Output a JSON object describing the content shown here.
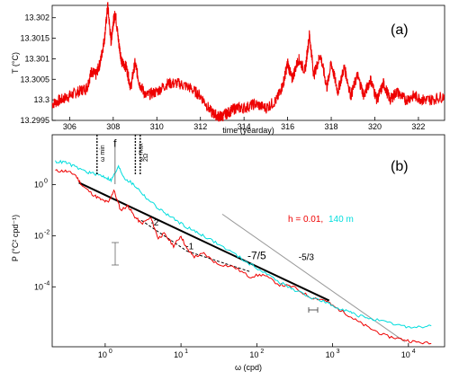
{
  "chart_data": [
    {
      "id": "a",
      "type": "line",
      "panel_label": "(a)",
      "xlabel": "time (yearday)",
      "ylabel": "T (°C)",
      "xlim": [
        305.2,
        323.2
      ],
      "ylim": [
        13.2995,
        13.3023
      ],
      "x_ticks": [
        306,
        308,
        310,
        312,
        314,
        316,
        318,
        320,
        322
      ],
      "y_ticks": [
        {
          "value": 13.2995,
          "label": "13.2995"
        },
        {
          "value": 13.3,
          "label": "13.3"
        },
        {
          "value": 13.3005,
          "label": "13.3005"
        },
        {
          "value": 13.301,
          "label": "13.301"
        },
        {
          "value": 13.3015,
          "label": "13.3015"
        },
        {
          "value": 13.302,
          "label": "13.302"
        }
      ],
      "grid": false,
      "color": "#ee0000",
      "series": [
        {
          "x": [
            305.2,
            305.6,
            306.0,
            306.4,
            306.8,
            307.0,
            307.2,
            307.4,
            307.6,
            307.75,
            307.9,
            308.0,
            308.1,
            308.25,
            308.4,
            308.6,
            308.8,
            309.0,
            309.2,
            309.5,
            310.0,
            310.5,
            311.0,
            311.5,
            312.0,
            312.5,
            312.8,
            313.0,
            313.3,
            313.6,
            314.0,
            314.5,
            315.0,
            315.5,
            315.8,
            316.0,
            316.2,
            316.5,
            316.8,
            317.0,
            317.2,
            317.5,
            317.8,
            318.0,
            318.3,
            318.6,
            318.9,
            319.2,
            319.5,
            319.8,
            320.1,
            320.4,
            320.7,
            321.0,
            321.4,
            321.8,
            322.2,
            322.6,
            323.2
          ],
          "y": [
            13.2999,
            13.3,
            13.3001,
            13.3002,
            13.3003,
            13.3007,
            13.3006,
            13.3009,
            13.3015,
            13.3023,
            13.3014,
            13.3019,
            13.3021,
            13.3014,
            13.3009,
            13.3008,
            13.3003,
            13.3009,
            13.3004,
            13.3001,
            13.3002,
            13.3004,
            13.3004,
            13.3003,
            13.3001,
            13.2997,
            13.2996,
            13.2996,
            13.2997,
            13.2998,
            13.2998,
            13.2999,
            13.2998,
            13.3,
            13.3004,
            13.3009,
            13.3005,
            13.301,
            13.3007,
            13.3016,
            13.3006,
            13.3011,
            13.3003,
            13.3009,
            13.3002,
            13.3008,
            13.3001,
            13.3006,
            13.3001,
            13.3005,
            13.3,
            13.3004,
            13.3,
            13.3002,
            13.3,
            13.3001,
            13.3,
            13.3,
            13.3001
          ]
        }
      ]
    },
    {
      "id": "b",
      "type": "line",
      "panel_label": "(b)",
      "xlabel": "ω (cpd)",
      "ylabel": "P (°C² cpd⁻¹)",
      "xscale": "log",
      "yscale": "log",
      "xlim": [
        0.2,
        30000
      ],
      "ylim": [
        4.5e-07,
        90
      ],
      "x_ticks": [
        {
          "value": 1,
          "label": "10",
          "exp": "0"
        },
        {
          "value": 10,
          "label": "10",
          "exp": "1"
        },
        {
          "value": 100,
          "label": "10",
          "exp": "2"
        },
        {
          "value": 1000,
          "label": "10",
          "exp": "3"
        },
        {
          "value": 10000,
          "label": "10",
          "exp": "4"
        }
      ],
      "y_ticks": [
        {
          "value": 1,
          "label": "10",
          "exp": "0"
        },
        {
          "value": 0.01,
          "label": "10",
          "exp": "-2"
        },
        {
          "value": 0.0001,
          "label": "10",
          "exp": "-4"
        }
      ],
      "legend": {
        "prefix": "h = 0.01, ",
        "entries": [
          {
            "name": "h = 0.01,",
            "color": "#ee0000"
          },
          {
            "name": "140 m",
            "color": "#00dddd"
          }
        ],
        "placement": "right"
      },
      "annotations": [
        {
          "text": "f",
          "x": 1.35,
          "y": 30
        },
        {
          "text": "-2",
          "x": 4.5,
          "y": 0.025
        },
        {
          "text": "-1",
          "x": 13,
          "y": 0.003
        },
        {
          "text": "-7/5",
          "x": 100,
          "y": 0.0012
        },
        {
          "text": "-5/3",
          "x": 450,
          "y": 0.0011
        }
      ],
      "vertical_markers": [
        {
          "x": 0.78,
          "label": "ω",
          "sub": "min"
        },
        {
          "x": 2.5,
          "label": "ω",
          "sub": "max"
        },
        {
          "x": 2.9,
          "label": "2Ω",
          "sub": ""
        }
      ],
      "reference_slopes": [
        {
          "slope": "-7/5",
          "x": [
            0.45,
            900
          ],
          "y": [
            1.2,
            2.9e-05
          ],
          "color": "#000000",
          "style": "solid"
        },
        {
          "slope": "-2",
          "x": [
            3,
            12
          ],
          "y": [
            0.04,
            0.0025
          ],
          "color": "#000000",
          "style": "dashed"
        },
        {
          "slope": "-1",
          "x": [
            12,
            80
          ],
          "y": [
            0.0025,
            0.0004
          ],
          "color": "#000000",
          "style": "dashed"
        },
        {
          "slope": "-5/3",
          "x": [
            35,
            9000
          ],
          "y": [
            0.07,
            7e-07
          ],
          "color": "#999999",
          "style": "solid"
        }
      ],
      "series": [
        {
          "name": "h = 0.01,",
          "color": "#ee0000",
          "x": [
            0.22,
            0.3,
            0.4,
            0.5,
            0.7,
            0.9,
            1.1,
            1.3,
            1.6,
            2.0,
            2.4,
            3.0,
            4.0,
            5.0,
            6.0,
            8.0,
            10,
            12,
            15,
            20,
            30,
            50,
            80,
            120,
            200,
            300,
            500,
            800,
            1000,
            1500,
            2000,
            3000,
            5000,
            8000,
            12000,
            20000
          ],
          "y": [
            3.5,
            3.4,
            2.5,
            0.9,
            0.4,
            0.25,
            0.2,
            0.6,
            0.1,
            0.15,
            0.06,
            0.03,
            0.05,
            0.008,
            0.012,
            0.004,
            0.01,
            0.003,
            0.0015,
            0.002,
            0.0008,
            0.0006,
            0.00025,
            0.0003,
            0.00012,
            0.0001,
            4e-05,
            3e-05,
            1.8e-05,
            9e-06,
            5e-06,
            2.5e-06,
            1.2e-06,
            9e-07,
            7e-07,
            6e-07
          ]
        },
        {
          "name": "140 m",
          "color": "#00dddd",
          "x": [
            0.22,
            0.3,
            0.4,
            0.6,
            0.8,
            1.0,
            1.2,
            1.5,
            1.8,
            2.2,
            2.7,
            3.5,
            5,
            7,
            10,
            15,
            20,
            30,
            50,
            80,
            120,
            200,
            300,
            500,
            800,
            1000,
            1500,
            2000,
            3000,
            5000,
            8000,
            12000,
            20000
          ],
          "y": [
            8,
            7.5,
            5,
            3,
            2.5,
            2.0,
            1.5,
            5,
            1.8,
            1.2,
            0.7,
            0.3,
            0.12,
            0.06,
            0.03,
            0.015,
            0.01,
            0.005,
            0.002,
            0.0008,
            0.0004,
            0.00015,
            8e-05,
            4e-05,
            2.5e-05,
            1.8e-05,
            1.2e-05,
            8e-06,
            6e-06,
            4e-06,
            3e-06,
            2.5e-06,
            3e-06
          ]
        }
      ]
    }
  ]
}
